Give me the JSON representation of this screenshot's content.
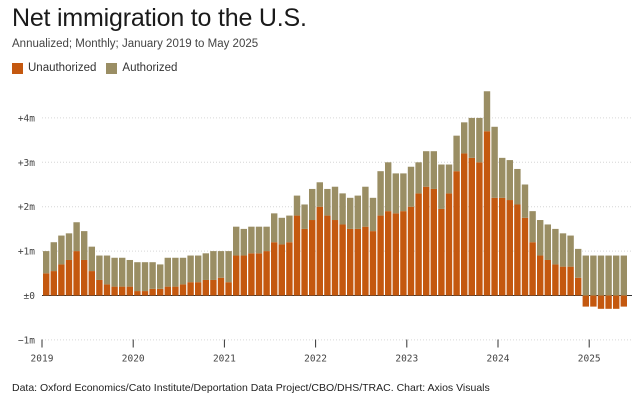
{
  "title": "Net immigration to the U.S.",
  "subtitle": "Annualized; Monthly; January 2019 to May 2025",
  "source": "Data: Oxford Economics/Cato Institute/Deportation Data Project/CBO/DHS/TRAC. Chart: Axios Visuals",
  "colors": {
    "unauthorized": "#c4580f",
    "authorized": "#9a8e64",
    "grid": "#d6d6d6",
    "axis": "#333333"
  },
  "chart_data": {
    "type": "bar",
    "stacked": true,
    "title": "Net immigration to the U.S.",
    "subtitle": "Annualized; Monthly; January 2019 to May 2025",
    "ylabel": "",
    "xlabel": "",
    "ylim": [
      -1000000,
      4600000
    ],
    "y_ticks": [
      4000000,
      3000000,
      2000000,
      1000000,
      0,
      -1000000
    ],
    "y_tick_labels": [
      "+4m",
      "+3m",
      "+2m",
      "+1m",
      "±0",
      "−1m"
    ],
    "x_ticks": [
      "2019",
      "2020",
      "2021",
      "2022",
      "2023",
      "2024",
      "2025"
    ],
    "legend": [
      "Unauthorized",
      "Authorized"
    ],
    "series": [
      {
        "name": "Unauthorized",
        "values": [
          500000,
          550000,
          700000,
          800000,
          1000000,
          800000,
          550000,
          350000,
          250000,
          200000,
          200000,
          200000,
          100000,
          100000,
          150000,
          150000,
          200000,
          200000,
          250000,
          300000,
          300000,
          350000,
          350000,
          400000,
          300000,
          900000,
          900000,
          950000,
          950000,
          1000000,
          1200000,
          1150000,
          1200000,
          1800000,
          1500000,
          1700000,
          2000000,
          1800000,
          1700000,
          1600000,
          1500000,
          1500000,
          1550000,
          1450000,
          1800000,
          1900000,
          1850000,
          1900000,
          2000000,
          2300000,
          2450000,
          2400000,
          1950000,
          2300000,
          2800000,
          3200000,
          3100000,
          3000000,
          3700000,
          2200000,
          2200000,
          2150000,
          2050000,
          1750000,
          1200000,
          900000,
          800000,
          700000,
          650000,
          650000,
          400000,
          -250000,
          -250000,
          -300000,
          -300000,
          -300000,
          -250000
        ]
      },
      {
        "name": "Authorized",
        "values": [
          500000,
          650000,
          650000,
          600000,
          650000,
          650000,
          550000,
          550000,
          650000,
          650000,
          650000,
          600000,
          650000,
          650000,
          600000,
          550000,
          650000,
          650000,
          600000,
          600000,
          600000,
          600000,
          650000,
          600000,
          700000,
          650000,
          600000,
          600000,
          600000,
          550000,
          650000,
          600000,
          600000,
          450000,
          550000,
          700000,
          550000,
          600000,
          750000,
          700000,
          700000,
          750000,
          900000,
          750000,
          1000000,
          1100000,
          900000,
          850000,
          900000,
          700000,
          800000,
          850000,
          1000000,
          650000,
          800000,
          700000,
          900000,
          1000000,
          900000,
          1600000,
          900000,
          900000,
          800000,
          750000,
          700000,
          800000,
          800000,
          800000,
          750000,
          700000,
          650000,
          900000,
          900000,
          900000,
          900000,
          900000,
          900000
        ]
      }
    ]
  }
}
